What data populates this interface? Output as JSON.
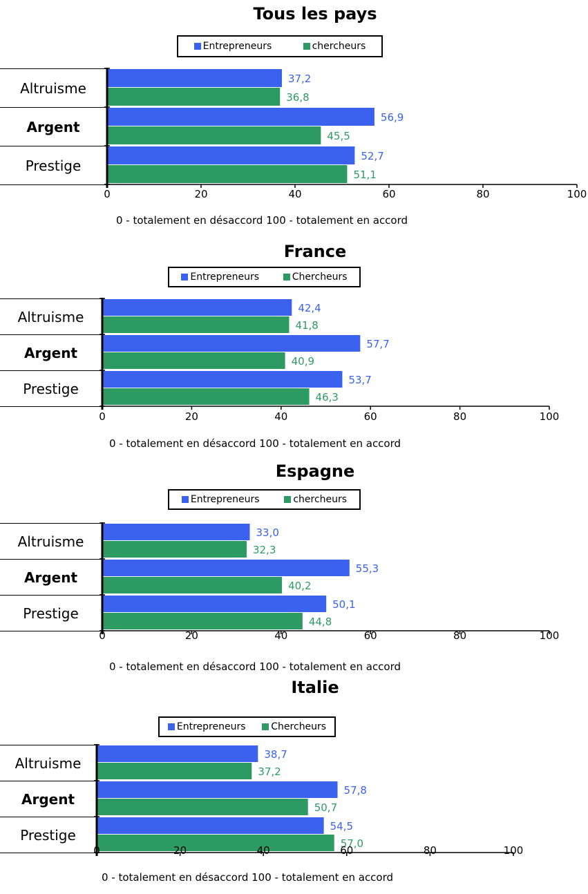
{
  "colors": {
    "entrepreneurs": "#3a62ee",
    "chercheurs": "#2e9a63"
  },
  "chart_data": [
    {
      "type": "bar",
      "title": "Tous les pays",
      "categories": [
        "Altruisme",
        "Argent",
        "Prestige"
      ],
      "bold_categories": [
        "Argent"
      ],
      "series": [
        {
          "name": "Entrepreneurs",
          "values": [
            37.2,
            56.9,
            52.7
          ],
          "labels": [
            "37,2",
            "56,9",
            "52,7"
          ]
        },
        {
          "name": "chercheurs",
          "values": [
            36.8,
            45.5,
            51.1
          ],
          "labels": [
            "36,8",
            "45,5",
            "51,1"
          ]
        }
      ],
      "xlim": [
        0,
        100
      ],
      "xticks": [
        "0",
        "20",
        "40",
        "60",
        "80",
        "100"
      ],
      "note": "0 - totalement en désaccord  100 - totalement en accord"
    },
    {
      "type": "bar",
      "title": "France",
      "categories": [
        "Altruisme",
        "Argent",
        "Prestige"
      ],
      "bold_categories": [
        "Argent"
      ],
      "series": [
        {
          "name": "Entrepreneurs",
          "values": [
            42.4,
            57.7,
            53.7
          ],
          "labels": [
            "42,4",
            "57,7",
            "53,7"
          ]
        },
        {
          "name": "Chercheurs",
          "values": [
            41.8,
            40.9,
            46.3
          ],
          "labels": [
            "41,8",
            "40,9",
            "46,3"
          ]
        }
      ],
      "xlim": [
        0,
        100
      ],
      "xticks": [
        "0",
        "20",
        "40",
        "60",
        "80",
        "100"
      ],
      "note": "0 - totalement en désaccord  100 - totalement en accord"
    },
    {
      "type": "bar",
      "title": "Espagne",
      "categories": [
        "Altruisme",
        "Argent",
        "Prestige"
      ],
      "bold_categories": [
        "Argent"
      ],
      "series": [
        {
          "name": "Entrepreneurs",
          "values": [
            33.0,
            55.3,
            50.1
          ],
          "labels": [
            "33,0",
            "55,3",
            "50,1"
          ]
        },
        {
          "name": "chercheurs",
          "values": [
            32.3,
            40.2,
            44.8
          ],
          "labels": [
            "32,3",
            "40,2",
            "44,8"
          ]
        }
      ],
      "xlim": [
        0,
        100
      ],
      "xticks": [
        "0",
        "20",
        "40",
        "60",
        "80",
        "100"
      ],
      "note": "0 - totalement en désaccord  100 - totalement en accord"
    },
    {
      "type": "bar",
      "title": "Italie",
      "categories": [
        "Altruisme",
        "Argent",
        "Prestige"
      ],
      "bold_categories": [
        "Argent"
      ],
      "series": [
        {
          "name": "Entrepreneurs",
          "values": [
            38.7,
            57.8,
            54.5
          ],
          "labels": [
            "38,7",
            "57,8",
            "54,5"
          ]
        },
        {
          "name": "Chercheurs",
          "values": [
            37.2,
            50.7,
            57.0
          ],
          "labels": [
            "37,2",
            "50,7",
            "57,0"
          ]
        }
      ],
      "xlim": [
        0,
        100
      ],
      "xticks": [
        "0",
        "20",
        "40",
        "60",
        "80",
        "100"
      ],
      "note": "0 - totalement en désaccord  100 - totalement en accord"
    }
  ]
}
